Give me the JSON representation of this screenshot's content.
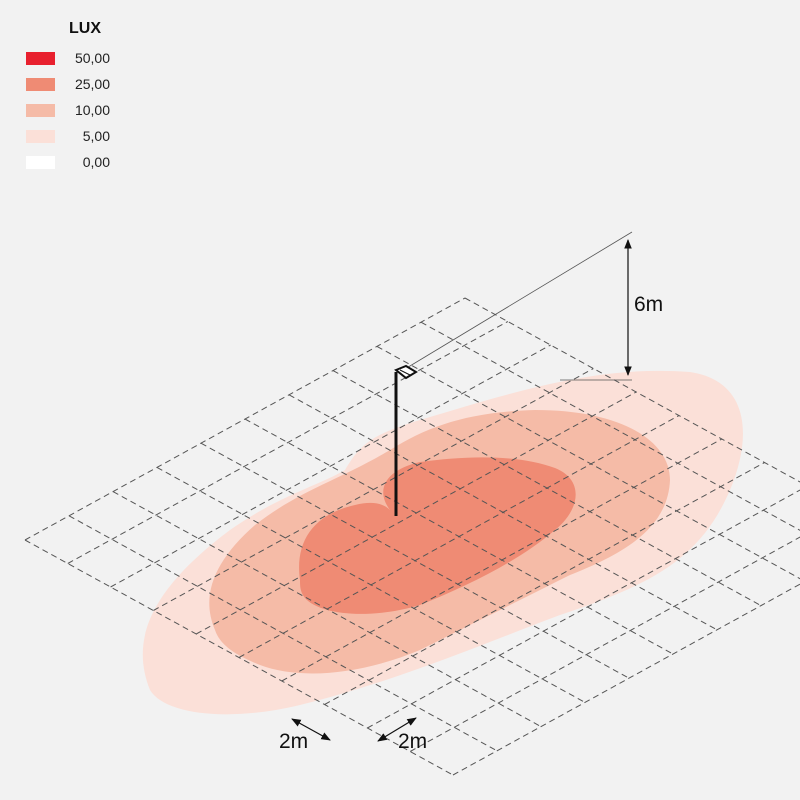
{
  "legend": {
    "title": "LUX",
    "items": [
      {
        "value": "50,00",
        "color": "#e8202e"
      },
      {
        "value": "25,00",
        "color": "#ef8b74"
      },
      {
        "value": "10,00",
        "color": "#f5bba7"
      },
      {
        "value": "5,00",
        "color": "#fbe0d8"
      },
      {
        "value": "0,00",
        "color": "#ffffff"
      }
    ]
  },
  "dimensions": {
    "height_label": "6m",
    "grid_label_left": "2m",
    "grid_label_right": "2m"
  },
  "colors": {
    "background": "#f2f2f2",
    "zone_5": "#fbe0d8",
    "zone_10": "#f5bba7",
    "zone_25": "#ef8b74",
    "grid": "#555555",
    "pole": "#111111"
  }
}
